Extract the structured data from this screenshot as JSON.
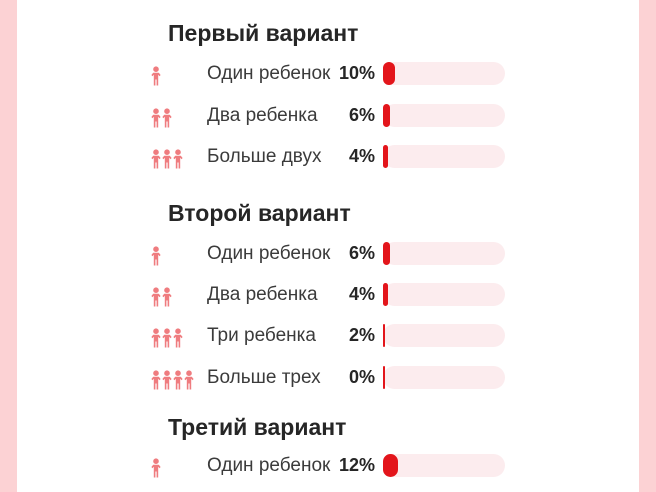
{
  "colors": {
    "background": "#fcd2d4",
    "card": "#ffffff",
    "bar_fill": "#e3151b",
    "bar_track": "#fcecee",
    "icon": "#ef7c7f",
    "text": "#262626"
  },
  "icon_name": "child-figure-icon",
  "chart_data": [
    {
      "type": "bar",
      "title": "Первый вариант",
      "categories": [
        "Один ребенок",
        "Два ребенка",
        "Больше двух"
      ],
      "values": [
        10,
        6,
        4
      ],
      "value_labels": [
        "10%",
        "6%",
        "4%"
      ],
      "icon_counts": [
        1,
        2,
        3
      ],
      "unit": "%",
      "xlim": [
        0,
        100
      ]
    },
    {
      "type": "bar",
      "title": "Второй вариант",
      "categories": [
        "Один ребенок",
        "Два ребенка",
        "Три ребенка",
        "Больше трех"
      ],
      "values": [
        6,
        4,
        2,
        0
      ],
      "value_labels": [
        "6%",
        "4%",
        "2%",
        "0%"
      ],
      "icon_counts": [
        1,
        2,
        3,
        4
      ],
      "unit": "%",
      "xlim": [
        0,
        100
      ]
    },
    {
      "type": "bar",
      "title": "Третий вариант",
      "categories": [
        "Один ребенок"
      ],
      "values": [
        12
      ],
      "value_labels": [
        "12%"
      ],
      "icon_counts": [
        1
      ],
      "unit": "%",
      "xlim": [
        0,
        100
      ]
    }
  ]
}
